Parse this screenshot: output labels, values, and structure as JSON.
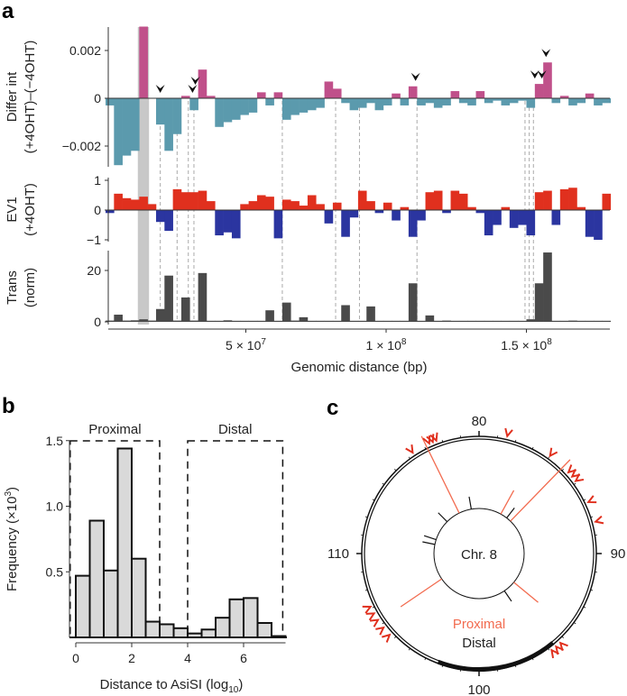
{
  "panels": {
    "a": "a",
    "b": "b",
    "c": "c"
  },
  "chart_data": [
    {
      "type": "bar",
      "panel": "a",
      "title": "",
      "xlabel": "Genomic distance (bp)",
      "x_ticks": [
        {
          "value": 50000000,
          "label": "5 × 10",
          "exp": "7"
        },
        {
          "value": 100000000,
          "label": "1 × 10",
          "exp": "8"
        },
        {
          "value": 150000000,
          "label": "1.5 × 10",
          "exp": "8"
        }
      ],
      "bin_width_bp": 3000000,
      "highlight_bp": [
        11500000,
        15500000
      ],
      "arrowhead_bp": [
        19500000,
        31000000,
        32000000,
        110500000,
        153000000,
        155500000,
        157000000
      ],
      "dashed_bp": [
        19500000,
        25500000,
        29500000,
        31500000,
        63000000,
        82000000,
        90500000,
        111000000,
        149500000,
        151000000,
        152500000
      ],
      "tracks": [
        {
          "name": "Differ int",
          "ylabel": [
            "Differ int",
            "(+4OHT)–(−4OHT)"
          ],
          "ylim": [
            -0.003,
            0.003
          ],
          "yticks": [
            {
              "v": 0.002,
              "label": "0.002"
            },
            {
              "v": 0,
              "label": "0"
            },
            {
              "v": -0.002,
              "label": "−0.002"
            }
          ],
          "pos_color": "#c0508a",
          "neg_color": "#5b9aad",
          "values": [
            -0.0003,
            -0.0028,
            -0.0024,
            -0.0022,
            0.003,
            0,
            -0.0011,
            -0.0022,
            -0.0015,
            0.0001,
            -0.0005,
            0.0012,
            0.0001,
            -0.0012,
            -0.001,
            -0.0009,
            -0.0007,
            -0.0006,
            0.00025,
            -0.0003,
            0.00025,
            -0.0009,
            -0.0007,
            -0.0006,
            -0.0005,
            -0.0004,
            0.0007,
            0.0004,
            -0.0002,
            -0.0005,
            -0.0004,
            -0.0002,
            -0.0005,
            -0.0003,
            0.0002,
            -0.0003,
            0.0005,
            -0.0003,
            -0.0002,
            -0.0004,
            -0.0003,
            0.0003,
            -0.0002,
            -0.0003,
            0.0003,
            -0.0002,
            -0.0001,
            -0.0003,
            -0.0002,
            -0.0001,
            -0.0004,
            0.0006,
            0.0015,
            -0.0002,
            0.0001,
            -0.0003,
            -0.0002,
            0.0002,
            -0.0003,
            -0.0002
          ]
        },
        {
          "name": "EV1",
          "ylabel": [
            "EV1",
            "(+4OHT)"
          ],
          "ylim": [
            -1,
            1
          ],
          "yticks": [
            {
              "v": 1,
              "label": "1"
            },
            {
              "v": 0,
              "label": "0"
            },
            {
              "v": -1,
              "label": "−1"
            }
          ],
          "pos_color": "#e0301e",
          "neg_color": "#2b35a0",
          "values": [
            -0.1,
            0.55,
            0.4,
            0.35,
            0.45,
            0.2,
            -0.4,
            -0.7,
            0.7,
            0.6,
            0.6,
            0.65,
            0.3,
            -0.85,
            -0.75,
            -0.95,
            0.2,
            0.3,
            0.5,
            0.45,
            -0.95,
            0.35,
            0.3,
            0.15,
            0.5,
            0.2,
            -0.45,
            0.25,
            -0.9,
            -0.25,
            0.65,
            0.3,
            -0.1,
            0.25,
            -0.35,
            0.1,
            -0.9,
            -0.35,
            0.6,
            0.65,
            -0.1,
            0.65,
            0.55,
            0.1,
            -0.1,
            -0.85,
            -0.5,
            0.1,
            -0.6,
            -0.5,
            -0.85,
            0.6,
            0.65,
            -0.5,
            0.7,
            0.75,
            0.1,
            -0.9,
            -1.0,
            0.55
          ]
        },
        {
          "name": "Trans",
          "ylabel": [
            "Trans",
            "(norm)"
          ],
          "ylim": [
            0,
            28
          ],
          "yticks": [
            {
              "v": 20,
              "label": "20"
            },
            {
              "v": 0,
              "label": "0"
            }
          ],
          "pos_color": "#4a4a4a",
          "neg_color": "#4a4a4a",
          "values": [
            0.5,
            2.8,
            0.5,
            0.6,
            1,
            0.5,
            5,
            18,
            0.5,
            9.5,
            0.5,
            19,
            0.3,
            0.3,
            0.6,
            0.3,
            0.3,
            0.3,
            0.3,
            4.5,
            0.3,
            7.5,
            0.5,
            1.8,
            0.3,
            0.3,
            0.3,
            0.3,
            6.5,
            0.3,
            0.3,
            6,
            0.3,
            0.3,
            0.3,
            0.3,
            15,
            0.3,
            2.5,
            0.3,
            0.5,
            0.3,
            0.3,
            0.3,
            0.3,
            0.3,
            0.3,
            0.3,
            0.3,
            0.3,
            1,
            15,
            27,
            0.3,
            0.3,
            0.5,
            0.3,
            0.3,
            0.3,
            0.3
          ]
        }
      ]
    },
    {
      "type": "bar",
      "panel": "b",
      "xlabel": "Distance to AsiSI (log",
      "xlabel_sub": "10",
      "xlabel_end": ")",
      "ylabel": "Frequency (×10",
      "ylabel_sup": "3",
      "ylabel_end": ")",
      "bin_width": 0.5,
      "bin_start": 0,
      "values": [
        0.47,
        0.89,
        0.51,
        1.44,
        0.6,
        0.12,
        0.1,
        0.07,
        0.03,
        0.06,
        0.15,
        0.29,
        0.3,
        0.11,
        0.01
      ],
      "ylim": [
        0,
        1.5
      ],
      "xlim": [
        0,
        7.5
      ],
      "yticks": [
        {
          "v": 0.5,
          "label": "0.5"
        },
        {
          "v": 1.0,
          "label": "1.0"
        },
        {
          "v": 1.5,
          "label": "1.5"
        }
      ],
      "xticks": [
        {
          "v": 0,
          "label": "0"
        },
        {
          "v": 2,
          "label": "2"
        },
        {
          "v": 4,
          "label": "4"
        },
        {
          "v": 6,
          "label": "6"
        }
      ],
      "regions": [
        {
          "label": "Proximal",
          "range": [
            -0.2,
            3
          ]
        },
        {
          "label": "Distal",
          "range": [
            4,
            7.4
          ]
        }
      ]
    },
    {
      "type": "circos",
      "panel": "c",
      "center_label": "Chr. 8",
      "range_mb": [
        80,
        120
      ],
      "ticks": [
        {
          "v": 80,
          "label": "80"
        },
        {
          "v": 90,
          "label": "90"
        },
        {
          "v": 100,
          "label": "100"
        },
        {
          "v": 110,
          "label": "110"
        }
      ],
      "legend": [
        {
          "label": "Proximal",
          "color": "#f26b4f"
        },
        {
          "label": "Distal",
          "color": "#111111"
        }
      ],
      "proximal_links_mb": [
        117.1,
        83.2,
        84.9,
        106.2,
        94.4
      ],
      "distal_links_mb": [
        118.9,
        115.0,
        112.0,
        111.3,
        84.2,
        96.2
      ],
      "arrowheads_mb": [
        81.5,
        84.0,
        85.3,
        85.6,
        85.9,
        87.2,
        88.3,
        95.3,
        95.6,
        95.9,
        105.3,
        105.8,
        106.3,
        106.7,
        107.1,
        116.3,
        117.3,
        117.5,
        117.7
      ],
      "dense_region_mb": [
        95.6,
        102.3
      ]
    }
  ]
}
